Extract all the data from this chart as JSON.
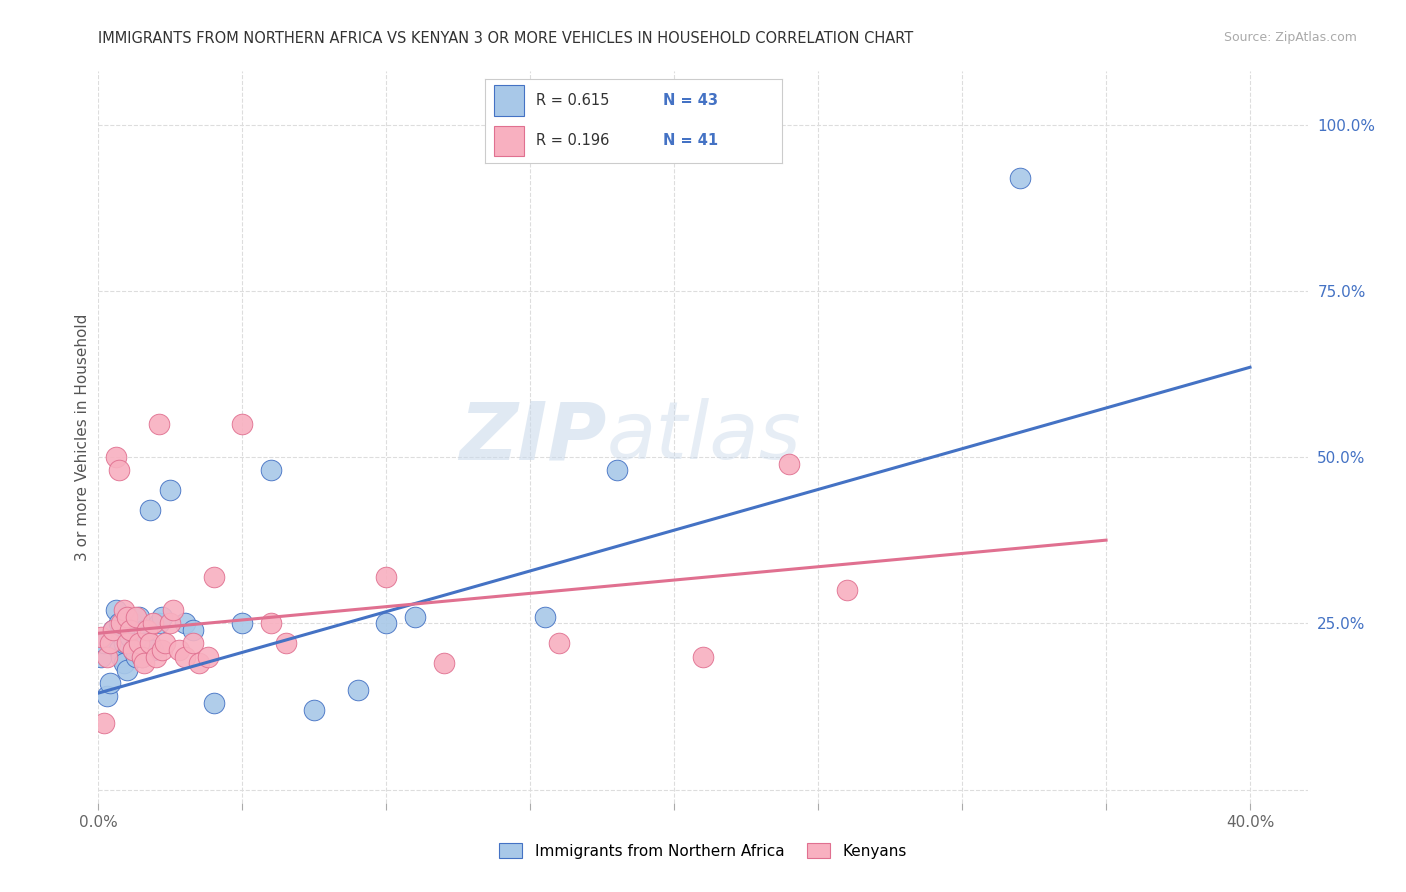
{
  "title": "IMMIGRANTS FROM NORTHERN AFRICA VS KENYAN 3 OR MORE VEHICLES IN HOUSEHOLD CORRELATION CHART",
  "source": "Source: ZipAtlas.com",
  "ylabel": "3 or more Vehicles in Household",
  "xlim": [
    0.0,
    0.42
  ],
  "ylim": [
    -0.02,
    1.08
  ],
  "xticks": [
    0.0,
    0.05,
    0.1,
    0.15,
    0.2,
    0.25,
    0.3,
    0.35,
    0.4
  ],
  "xticklabels": [
    "0.0%",
    "",
    "",
    "",
    "",
    "",
    "",
    "",
    "40.0%"
  ],
  "yticks_right": [
    0.0,
    0.25,
    0.5,
    0.75,
    1.0
  ],
  "ytick_labels_right": [
    "",
    "25.0%",
    "50.0%",
    "75.0%",
    "100.0%"
  ],
  "blue_R": "0.615",
  "blue_N": "43",
  "pink_R": "0.196",
  "pink_N": "41",
  "blue_color": "#a8c8e8",
  "pink_color": "#f8b0c0",
  "blue_line_color": "#4472c4",
  "pink_line_color": "#e07090",
  "watermark_zip": "ZIP",
  "watermark_atlas": "atlas",
  "legend_label_blue": "Immigrants from Northern Africa",
  "legend_label_pink": "Kenyans",
  "blue_scatter_x": [
    0.001,
    0.002,
    0.003,
    0.004,
    0.005,
    0.005,
    0.006,
    0.007,
    0.007,
    0.008,
    0.008,
    0.009,
    0.009,
    0.01,
    0.01,
    0.011,
    0.011,
    0.012,
    0.012,
    0.013,
    0.013,
    0.014,
    0.015,
    0.016,
    0.016,
    0.017,
    0.018,
    0.019,
    0.021,
    0.022,
    0.025,
    0.03,
    0.033,
    0.04,
    0.05,
    0.06,
    0.075,
    0.09,
    0.1,
    0.11,
    0.155,
    0.18,
    0.32
  ],
  "blue_scatter_y": [
    0.2,
    0.22,
    0.14,
    0.16,
    0.24,
    0.22,
    0.27,
    0.25,
    0.21,
    0.24,
    0.2,
    0.22,
    0.19,
    0.18,
    0.22,
    0.23,
    0.24,
    0.25,
    0.21,
    0.2,
    0.22,
    0.26,
    0.2,
    0.24,
    0.22,
    0.21,
    0.42,
    0.21,
    0.25,
    0.26,
    0.45,
    0.25,
    0.24,
    0.13,
    0.25,
    0.48,
    0.12,
    0.15,
    0.25,
    0.26,
    0.26,
    0.48,
    0.92
  ],
  "pink_scatter_x": [
    0.001,
    0.002,
    0.003,
    0.004,
    0.005,
    0.006,
    0.007,
    0.008,
    0.009,
    0.01,
    0.01,
    0.011,
    0.012,
    0.013,
    0.014,
    0.015,
    0.016,
    0.017,
    0.018,
    0.019,
    0.02,
    0.021,
    0.022,
    0.023,
    0.025,
    0.026,
    0.028,
    0.03,
    0.033,
    0.035,
    0.038,
    0.04,
    0.05,
    0.06,
    0.065,
    0.1,
    0.12,
    0.16,
    0.21,
    0.24,
    0.26
  ],
  "pink_scatter_y": [
    0.23,
    0.1,
    0.2,
    0.22,
    0.24,
    0.5,
    0.48,
    0.25,
    0.27,
    0.26,
    0.22,
    0.24,
    0.21,
    0.26,
    0.22,
    0.2,
    0.19,
    0.24,
    0.22,
    0.25,
    0.2,
    0.55,
    0.21,
    0.22,
    0.25,
    0.27,
    0.21,
    0.2,
    0.22,
    0.19,
    0.2,
    0.32,
    0.55,
    0.25,
    0.22,
    0.32,
    0.19,
    0.22,
    0.2,
    0.49,
    0.3
  ],
  "blue_trend": [
    0.0,
    0.4,
    0.145,
    0.635
  ],
  "pink_trend": [
    0.0,
    0.35,
    0.235,
    0.375
  ],
  "bg_color": "#ffffff",
  "grid_color": "#dddddd"
}
